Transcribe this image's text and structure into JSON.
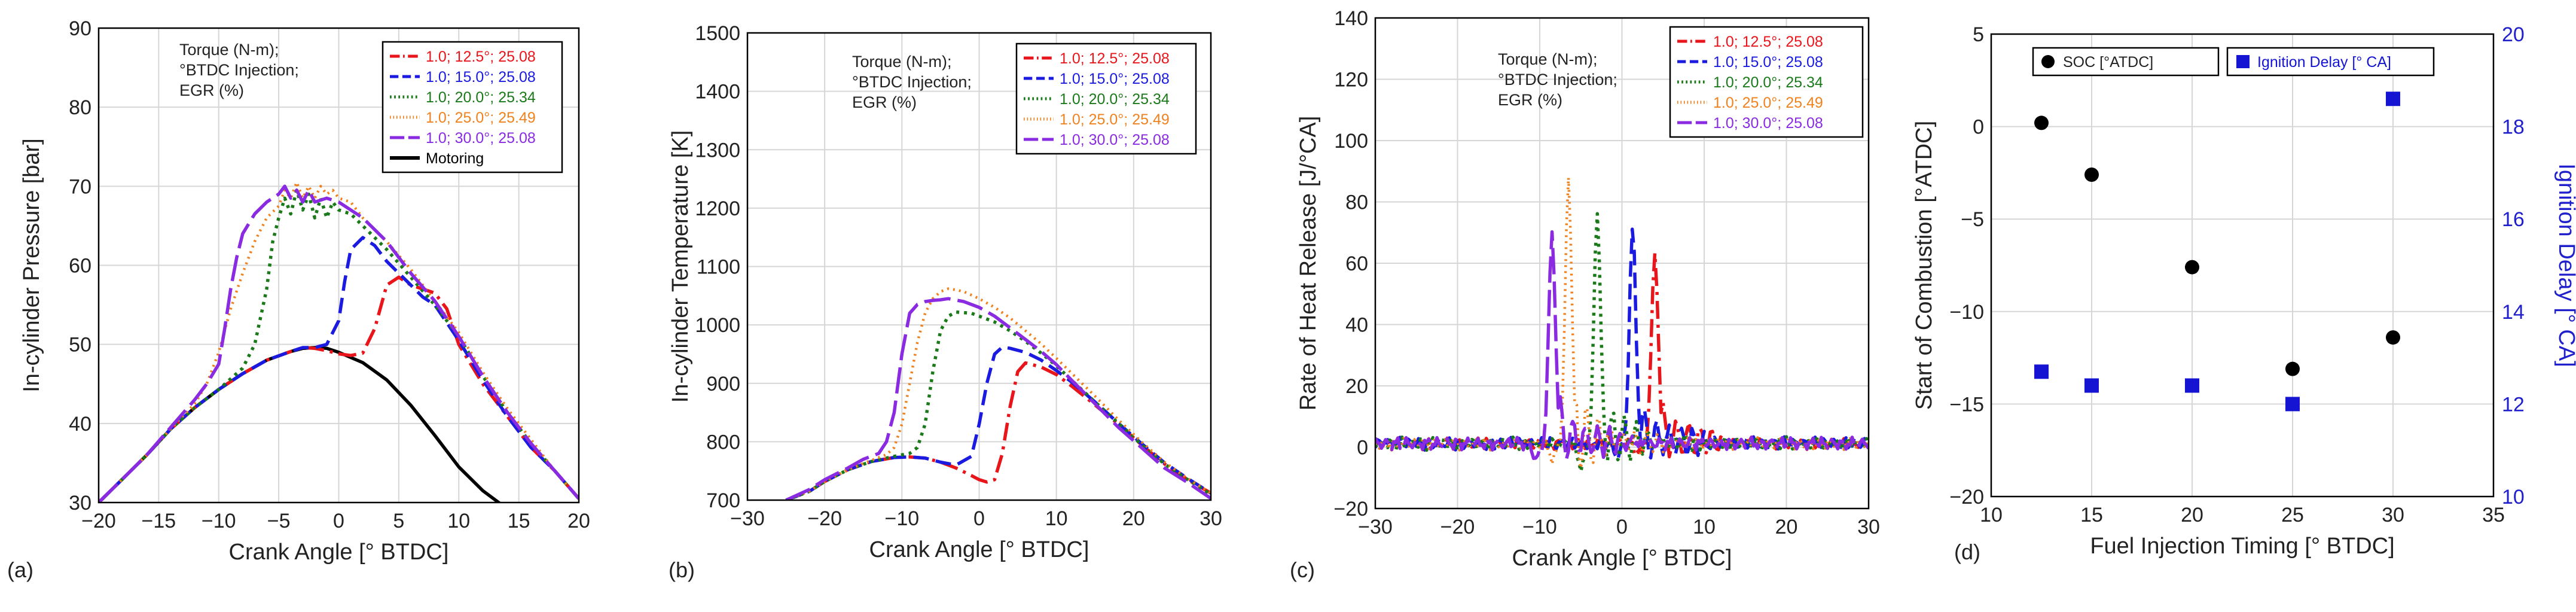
{
  "figure": {
    "panels": [
      "(a)",
      "(b)",
      "(c)",
      "(d)"
    ]
  },
  "colors": {
    "s125": "#e8151b",
    "s150": "#1a1ae0",
    "s200": "#1a7a1a",
    "s250": "#f0821e",
    "s300": "#8a2be2",
    "motoring": "#000000",
    "soc": "#000000",
    "delay": "#1414d2",
    "right_axis": "#1f1fcc",
    "grid": "#d6d6d6"
  },
  "chart_data": [
    {
      "id": "a",
      "type": "line",
      "panel_label": "(a)",
      "xlabel": "Crank Angle [° BTDC]",
      "ylabel": "In-cylinder Pressure [bar]",
      "xlim": [
        -20,
        20
      ],
      "ylim": [
        30,
        90
      ],
      "xticks": [
        -20,
        -15,
        -10,
        -5,
        0,
        5,
        10,
        15,
        20
      ],
      "yticks": [
        30,
        40,
        50,
        60,
        70,
        80,
        90
      ],
      "grid": true,
      "legend_title": [
        "Torque (N-m);",
        "°BTDC Injection;",
        "EGR (%)"
      ],
      "legend_position": "top-right",
      "series": [
        {
          "key": "s125",
          "name": "1.0; 12.5°; 25.08",
          "dash": "dashdot",
          "x": [
            -20,
            -18,
            -16,
            -14,
            -12,
            -10,
            -8,
            -6,
            -4,
            -3,
            -2,
            -1,
            0,
            1,
            2,
            3,
            4,
            5,
            6,
            7,
            8,
            9,
            10,
            12,
            14,
            16,
            18,
            20
          ],
          "y": [
            30,
            33,
            36,
            39.3,
            42,
            44.3,
            46.3,
            48,
            49.1,
            49.6,
            49.5,
            49.2,
            48.8,
            48.6,
            48.9,
            52,
            57.5,
            58.5,
            57.5,
            57,
            56.5,
            54.5,
            50,
            45,
            41,
            37,
            34,
            30.5
          ]
        },
        {
          "key": "s150",
          "name": "1.0; 15.0°; 25.08",
          "dash": "dash",
          "x": [
            -20,
            -18,
            -16,
            -14,
            -12,
            -10,
            -8,
            -6,
            -4,
            -3,
            -2,
            -1,
            0,
            0.5,
            1,
            2,
            3,
            4,
            5,
            6,
            7,
            8,
            10,
            12,
            14,
            16,
            18,
            20
          ],
          "y": [
            30,
            33,
            36,
            39.3,
            42,
            44.3,
            46.3,
            48,
            49.1,
            49.6,
            49.6,
            50,
            53,
            58,
            62,
            63.5,
            62.5,
            60.5,
            59,
            57.5,
            56,
            55,
            50.5,
            45.5,
            41,
            37,
            34,
            30.5
          ]
        },
        {
          "key": "s200",
          "name": "1.0; 20.0°; 25.34",
          "dash": "dot",
          "x": [
            -20,
            -18,
            -16,
            -14,
            -12,
            -10,
            -8,
            -7,
            -6,
            -5.5,
            -5,
            -4.5,
            -4,
            -3.5,
            -3,
            -2.5,
            -2,
            -1.5,
            -1,
            -0.5,
            0,
            1,
            2,
            3,
            4,
            6,
            8,
            10,
            12,
            14,
            16,
            18,
            20
          ],
          "y": [
            30,
            33,
            36,
            39.3,
            42,
            44.3,
            47,
            50,
            57,
            63,
            66,
            68.5,
            66.5,
            69.5,
            67,
            69,
            66,
            68.5,
            66,
            68,
            67,
            66.5,
            65,
            63.5,
            62,
            58.5,
            55,
            51,
            46,
            41.5,
            37.5,
            34,
            30.5
          ]
        },
        {
          "key": "s250",
          "name": "1.0; 25.0°; 25.49",
          "dash": "densedot",
          "x": [
            -20,
            -18,
            -16,
            -14,
            -12,
            -11,
            -10,
            -9,
            -8,
            -7,
            -6,
            -5,
            -4.5,
            -4,
            -3.5,
            -3,
            -2.5,
            -2,
            -1.5,
            -1,
            -0.5,
            0,
            1,
            2,
            4,
            6,
            8,
            10,
            12,
            14,
            16,
            18,
            20
          ],
          "y": [
            30,
            33,
            36,
            39.3,
            42.5,
            45,
            49,
            54.5,
            59,
            63,
            66,
            67.5,
            69.5,
            68.5,
            70.5,
            68.5,
            70,
            68.5,
            70,
            69,
            69.5,
            68.5,
            68,
            66,
            63,
            59.5,
            55.5,
            51.5,
            46.5,
            42,
            38,
            34,
            30.5
          ]
        },
        {
          "key": "s300",
          "name": "1.0; 30.0°; 25.08",
          "dash": "longdash",
          "x": [
            -20,
            -18,
            -16,
            -14,
            -12,
            -11,
            -10,
            -9.5,
            -9,
            -8.5,
            -8,
            -7,
            -6,
            -5,
            -4.5,
            -4,
            -3.5,
            -3,
            -2.5,
            -2,
            -1,
            0,
            1,
            2,
            4,
            6,
            8,
            10,
            12,
            14,
            16,
            18,
            20
          ],
          "y": [
            30,
            33,
            36,
            39.5,
            43,
            45,
            47.5,
            52,
            57,
            61,
            64,
            66.5,
            68,
            69,
            70,
            68.5,
            69.5,
            68,
            69.5,
            68,
            68.5,
            68,
            67,
            66,
            63,
            59,
            55.5,
            51,
            46,
            41.5,
            37.5,
            34,
            30.5
          ]
        },
        {
          "key": "motoring",
          "name": "Motoring",
          "dash": "solid",
          "x": [
            -20,
            -18,
            -16,
            -14,
            -12,
            -10,
            -8,
            -6,
            -4,
            -3,
            -2,
            -1,
            0,
            2,
            4,
            6,
            8,
            10,
            12,
            13.5
          ],
          "y": [
            30,
            33,
            36,
            39.3,
            42,
            44.3,
            46.3,
            48,
            49.1,
            49.5,
            49.6,
            49.5,
            49,
            47.7,
            45.5,
            42.3,
            38.5,
            34.5,
            31.5,
            29.8
          ]
        }
      ]
    },
    {
      "id": "b",
      "type": "line",
      "panel_label": "(b)",
      "xlabel": "Crank Angle [° BTDC]",
      "ylabel": "In-cylinder Temperature [K]",
      "xlim": [
        -30,
        30
      ],
      "ylim": [
        700,
        1500
      ],
      "xticks": [
        -30,
        -20,
        -10,
        0,
        10,
        20,
        30
      ],
      "yticks": [
        700,
        800,
        900,
        1000,
        1100,
        1200,
        1300,
        1400,
        1500
      ],
      "grid": true,
      "legend_title": [
        "Torque (N-m);",
        "°BTDC Injection;",
        "EGR (%)"
      ],
      "legend_position": "top-right",
      "series": [
        {
          "key": "s125",
          "name": "1.0; 12.5°; 25.08",
          "dash": "dashdot",
          "x": [
            -25,
            -22,
            -20,
            -17,
            -14,
            -11,
            -9,
            -7,
            -5,
            -3,
            -1,
            0,
            1,
            2,
            3,
            4,
            5,
            6,
            8,
            10,
            12,
            15,
            18,
            21,
            24,
            27,
            30
          ],
          "y": [
            700,
            715,
            732,
            752,
            766,
            773,
            774,
            772,
            765,
            755,
            742,
            735,
            731,
            735,
            780,
            860,
            920,
            935,
            928,
            915,
            895,
            863,
            830,
            795,
            762,
            735,
            712
          ]
        },
        {
          "key": "s150",
          "name": "1.0; 15.0°; 25.08",
          "dash": "dash",
          "x": [
            -25,
            -22,
            -20,
            -17,
            -14,
            -11,
            -9,
            -7,
            -5,
            -3,
            -1,
            0,
            1,
            2,
            3,
            4,
            6,
            8,
            10,
            12,
            15,
            18,
            21,
            24,
            27,
            30
          ],
          "y": [
            700,
            715,
            732,
            752,
            766,
            773,
            774,
            772,
            765,
            760,
            775,
            830,
            900,
            950,
            962,
            960,
            953,
            940,
            922,
            902,
            868,
            832,
            797,
            764,
            737,
            712
          ]
        },
        {
          "key": "s200",
          "name": "1.0; 20.0°; 25.34",
          "dash": "dot",
          "x": [
            -25,
            -22,
            -20,
            -17,
            -14,
            -11,
            -9,
            -8,
            -7,
            -6,
            -5,
            -4,
            -3,
            -1,
            0,
            2,
            4,
            6,
            8,
            10,
            12,
            15,
            18,
            21,
            24,
            27,
            30
          ],
          "y": [
            700,
            715,
            732,
            752,
            766,
            775,
            780,
            790,
            830,
            920,
            990,
            1015,
            1022,
            1020,
            1015,
            1005,
            990,
            972,
            952,
            930,
            905,
            868,
            832,
            795,
            762,
            735,
            710
          ]
        },
        {
          "key": "s250",
          "name": "1.0; 25.0°; 25.49",
          "dash": "densedot",
          "x": [
            -25,
            -22,
            -20,
            -17,
            -14,
            -12,
            -11,
            -10,
            -9,
            -8,
            -7,
            -6,
            -5,
            -4,
            -3,
            -2,
            0,
            2,
            4,
            6,
            8,
            10,
            12,
            15,
            18,
            21,
            24,
            27,
            30
          ],
          "y": [
            700,
            715,
            732,
            752,
            768,
            778,
            790,
            830,
            900,
            970,
            1020,
            1045,
            1057,
            1062,
            1060,
            1057,
            1045,
            1030,
            1012,
            990,
            968,
            943,
            917,
            878,
            838,
            800,
            765,
            737,
            712
          ]
        },
        {
          "key": "s300",
          "name": "1.0; 30.0°; 25.08",
          "dash": "longdash",
          "x": [
            -25,
            -22,
            -20,
            -17,
            -15,
            -13,
            -12,
            -11,
            -10,
            -9,
            -8,
            -7,
            -6,
            -5,
            -4,
            -2,
            0,
            2,
            4,
            6,
            8,
            10,
            12,
            15,
            18,
            21,
            24,
            27,
            30
          ],
          "y": [
            700,
            718,
            735,
            755,
            770,
            780,
            800,
            850,
            950,
            1020,
            1035,
            1040,
            1042,
            1043,
            1045,
            1040,
            1030,
            1015,
            995,
            975,
            955,
            932,
            905,
            865,
            825,
            790,
            755,
            730,
            703
          ]
        }
      ]
    },
    {
      "id": "c",
      "type": "line",
      "panel_label": "(c)",
      "xlabel": "Crank Angle [° BTDC]",
      "ylabel": "Rate of Heat Release [J/°CA]",
      "xlim": [
        -30,
        30
      ],
      "ylim": [
        -20,
        140
      ],
      "xticks": [
        -30,
        -20,
        -10,
        0,
        10,
        20,
        30
      ],
      "yticks": [
        -20,
        0,
        20,
        40,
        60,
        80,
        100,
        120,
        140
      ],
      "grid": true,
      "legend_title": [
        "Torque (N-m);",
        "°BTDC Injection;",
        "EGR (%)"
      ],
      "legend_position": "top-right",
      "series": [
        {
          "key": "s125",
          "name": "1.0; 12.5°; 25.08",
          "dash": "dashdot",
          "peak_x": 4.0,
          "peak_y": 63,
          "pre_dip": -3,
          "post_noise": 9
        },
        {
          "key": "s150",
          "name": "1.0; 15.0°; 25.08",
          "dash": "dash",
          "peak_x": 1.3,
          "peak_y": 70,
          "pre_dip": -4,
          "post_noise": 10
        },
        {
          "key": "s200",
          "name": "1.0; 20.0°; 25.34",
          "dash": "dot",
          "peak_x": -3.0,
          "peak_y": 75,
          "pre_dip": -8,
          "post_noise": 10
        },
        {
          "key": "s250",
          "name": "1.0; 25.0°; 25.49",
          "dash": "densedot",
          "peak_x": -6.5,
          "peak_y": 86,
          "pre_dip": -5,
          "post_noise": 12
        },
        {
          "key": "s300",
          "name": "1.0; 30.0°; 25.08",
          "dash": "longdash",
          "peak_x": -8.5,
          "peak_y": 69,
          "pre_dip": -5,
          "post_noise": 10
        }
      ]
    },
    {
      "id": "d",
      "type": "scatter",
      "panel_label": "(d)",
      "xlabel": "Fuel Injection Timing [° BTDC]",
      "ylabel": "Start of Combustion [°ATDC]",
      "y2label": "Ignition Delay [° CA]",
      "xlim": [
        10,
        35
      ],
      "ylim": [
        -20,
        5
      ],
      "y2lim": [
        10,
        20
      ],
      "xticks": [
        10,
        15,
        20,
        25,
        30,
        35
      ],
      "yticks": [
        -20,
        -15,
        -10,
        -5,
        0,
        5
      ],
      "y2ticks": [
        10,
        12,
        14,
        16,
        18,
        20
      ],
      "grid": true,
      "series": [
        {
          "key": "soc",
          "name": "SOC [°ATDC]",
          "marker": "circle",
          "axis": "left",
          "x": [
            12.5,
            15,
            20,
            25,
            30
          ],
          "y": [
            0.2,
            -2.6,
            -7.6,
            -13.1,
            -11.4
          ]
        },
        {
          "key": "delay",
          "name": "Ignition Delay [° CA]",
          "marker": "square",
          "axis": "right",
          "x": [
            12.5,
            15,
            20,
            25,
            30
          ],
          "y": [
            12.7,
            12.4,
            12.4,
            12.0,
            18.6
          ]
        }
      ]
    }
  ]
}
